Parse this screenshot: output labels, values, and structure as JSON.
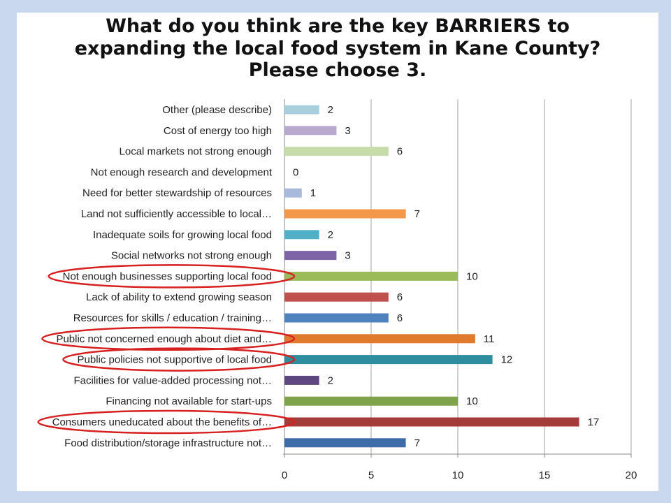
{
  "slide": {
    "background": "#c9d8ee",
    "title_lines": [
      "What do you think are the key BARRIERS to",
      "expanding the local food system in Kane County?",
      "Please choose 3."
    ]
  },
  "chart_data": {
    "type": "bar",
    "orientation": "horizontal",
    "title": "What do you think are the key BARRIERS to expanding the local food system in Kane County? Please choose 3.",
    "xlabel": "",
    "ylabel": "",
    "xlim": [
      0,
      20
    ],
    "xticks": [
      0,
      5,
      10,
      15,
      20
    ],
    "grid": "vertical",
    "legend": "none",
    "categories": [
      "Other (please describe)",
      "Cost of energy too high",
      "Local markets not strong enough",
      "Not enough research and development",
      "Need for better stewardship of resources",
      "Land not sufficiently accessible to local…",
      "Inadequate soils for growing local food",
      "Social networks not strong enough",
      "Not enough businesses supporting local food",
      "Lack of ability to extend growing season",
      "Resources for skills / education / training…",
      "Public not concerned enough about diet and…",
      "Public policies not supportive of local food",
      "Facilities for value-added processing not…",
      "Financing not available for start-ups",
      "Consumers uneducated about the benefits of…",
      "Food distribution/storage infrastructure not…"
    ],
    "values": [
      2,
      3,
      6,
      0,
      1,
      7,
      2,
      3,
      10,
      6,
      6,
      11,
      12,
      2,
      10,
      17,
      7
    ],
    "colors": [
      "#a9cfdd",
      "#b9a9cf",
      "#c7dcab",
      "#c0c0c0",
      "#a8b9db",
      "#f3974a",
      "#4fb0c6",
      "#7e63a6",
      "#9bbb59",
      "#c0504d",
      "#4f81bd",
      "#e07b2e",
      "#2e8ea0",
      "#5e4680",
      "#7ea34a",
      "#a33b3b",
      "#3e6ca8"
    ],
    "highlighted": [
      "Not enough businesses supporting local food",
      "Public not concerned enough about diet and…",
      "Public policies not supportive of local food",
      "Consumers uneducated about the benefits of…"
    ],
    "highlight_color": "#d72020"
  }
}
